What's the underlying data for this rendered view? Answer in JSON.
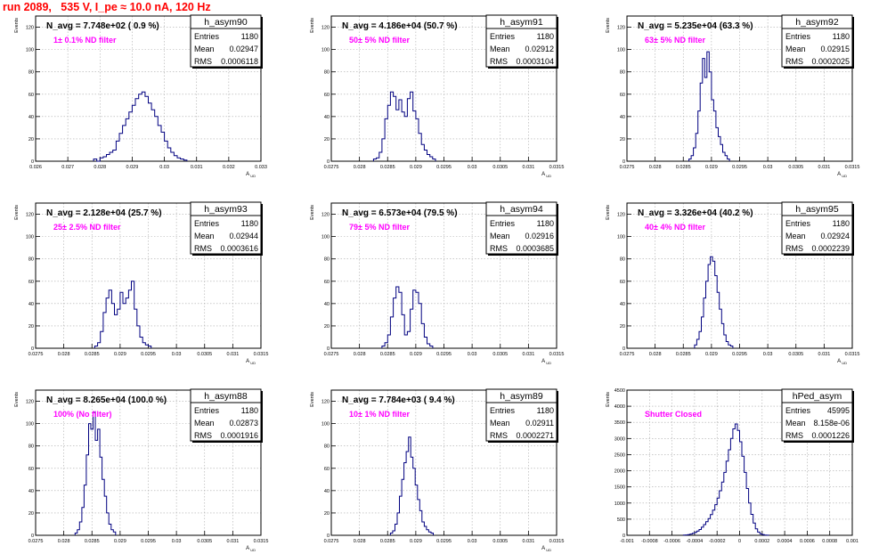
{
  "header": {
    "title": "run 2089,   535 V, I_pe ≈ 10.0 nA, 120 Hz"
  },
  "stats_labels": {
    "entries": "Entries",
    "mean": "Mean",
    "rms": "RMS"
  },
  "colors": {
    "histogram": "#000080",
    "annotation": "#ff00ff",
    "header": "#ff0000",
    "grid": "#aaaaaa"
  },
  "chart_data": [
    {
      "type": "histogram",
      "name": "h_asym90",
      "ylabel": "Events",
      "xlabel": "A_UD",
      "title": "N_avg = 7.748e+02 ( 0.9 %)",
      "annotation": "1± 0.1% ND filter",
      "stats": {
        "entries": "1180",
        "mean": "0.02947",
        "rms": "0.0006118"
      },
      "xlim": [
        0.026,
        0.033
      ],
      "ylim": [
        0,
        130
      ],
      "xticks": [
        "0.026",
        "0.027",
        "0.028",
        "0.029",
        "0.03",
        "0.031",
        "0.032",
        "0.033"
      ],
      "xtick_values": [
        0.026,
        0.027,
        0.028,
        0.029,
        0.03,
        0.031,
        0.032,
        0.033
      ],
      "yticks": [
        0,
        20,
        40,
        60,
        80,
        100,
        120
      ],
      "bins": {
        "start": 0.0278,
        "width": 0.0001,
        "counts": [
          2,
          0,
          3,
          4,
          6,
          8,
          10,
          18,
          25,
          32,
          38,
          44,
          50,
          56,
          60,
          62,
          58,
          52,
          46,
          40,
          32,
          26,
          18,
          12,
          8,
          5,
          3,
          2,
          1
        ]
      }
    },
    {
      "type": "histogram",
      "name": "h_asym91",
      "ylabel": "Events",
      "xlabel": "A_UD",
      "title": "N_avg = 4.186e+04 (50.7 %)",
      "annotation": "50± 5% ND filter",
      "stats": {
        "entries": "1180",
        "mean": "0.02912",
        "rms": "0.0003104"
      },
      "xlim": [
        0.0275,
        0.0315
      ],
      "ylim": [
        0,
        130
      ],
      "xticks": [
        "0.0275",
        "0.028",
        "0.0285",
        "0.029",
        "0.0295",
        "0.03",
        "0.0305",
        "0.031",
        "0.0315"
      ],
      "xtick_values": [
        0.0275,
        0.028,
        0.0285,
        0.029,
        0.0295,
        0.03,
        0.0305,
        0.031,
        0.0315
      ],
      "yticks": [
        0,
        20,
        40,
        60,
        80,
        100,
        120
      ],
      "bins": {
        "start": 0.02825,
        "width": 5e-05,
        "counts": [
          2,
          3,
          8,
          20,
          38,
          50,
          62,
          58,
          46,
          55,
          44,
          40,
          56,
          62,
          45,
          38,
          25,
          15,
          10,
          6,
          4,
          2
        ]
      }
    },
    {
      "type": "histogram",
      "name": "h_asym92",
      "ylabel": "Events",
      "xlabel": "A_UD",
      "title": "N_avg = 5.235e+04 (63.3 %)",
      "annotation": "63± 5% ND filter",
      "stats": {
        "entries": "1180",
        "mean": "0.02915",
        "rms": "0.0002025"
      },
      "xlim": [
        0.0275,
        0.0315
      ],
      "ylim": [
        0,
        130
      ],
      "xticks": [
        "0.0275",
        "0.028",
        "0.0285",
        "0.029",
        "0.0295",
        "0.03",
        "0.0305",
        "0.031",
        "0.0315"
      ],
      "xtick_values": [
        0.0275,
        0.028,
        0.0285,
        0.029,
        0.0295,
        0.03,
        0.0305,
        0.031,
        0.0315
      ],
      "yticks": [
        0,
        20,
        40,
        60,
        80,
        100,
        120
      ],
      "bins": {
        "start": 0.0286,
        "width": 4e-05,
        "counts": [
          2,
          5,
          12,
          25,
          45,
          70,
          92,
          75,
          98,
          80,
          55,
          45,
          30,
          22,
          15,
          8,
          5,
          2
        ]
      }
    },
    {
      "type": "histogram",
      "name": "h_asym93",
      "ylabel": "Events",
      "xlabel": "A_UD",
      "title": "N_avg = 2.128e+04 (25.7 %)",
      "annotation": "25± 2.5% ND filter",
      "stats": {
        "entries": "1180",
        "mean": "0.02944",
        "rms": "0.0003616"
      },
      "xlim": [
        0.0275,
        0.0315
      ],
      "ylim": [
        0,
        130
      ],
      "xticks": [
        "0.0275",
        "0.028",
        "0.0285",
        "0.029",
        "0.0295",
        "0.03",
        "0.0305",
        "0.031",
        "0.0315"
      ],
      "xtick_values": [
        0.0275,
        0.028,
        0.0285,
        0.029,
        0.0295,
        0.03,
        0.0305,
        0.031,
        0.0315
      ],
      "yticks": [
        0,
        20,
        40,
        60,
        80,
        100,
        120
      ],
      "bins": {
        "start": 0.02855,
        "width": 5e-05,
        "counts": [
          2,
          5,
          15,
          32,
          45,
          52,
          40,
          30,
          35,
          50,
          40,
          45,
          52,
          60,
          35,
          20,
          10,
          5,
          3,
          2
        ]
      }
    },
    {
      "type": "histogram",
      "name": "h_asym94",
      "ylabel": "Events",
      "xlabel": "A_UD",
      "title": "N_avg = 6.573e+04 (79.5 %)",
      "annotation": "79± 5% ND filter",
      "stats": {
        "entries": "1180",
        "mean": "0.02916",
        "rms": "0.0003685"
      },
      "xlim": [
        0.0275,
        0.0315
      ],
      "ylim": [
        0,
        130
      ],
      "xticks": [
        "0.0275",
        "0.028",
        "0.0285",
        "0.029",
        "0.0295",
        "0.03",
        "0.0305",
        "0.031",
        "0.0315"
      ],
      "xtick_values": [
        0.0275,
        0.028,
        0.0285,
        0.029,
        0.0295,
        0.03,
        0.0305,
        0.031,
        0.0315
      ],
      "yticks": [
        0,
        20,
        40,
        60,
        80,
        100,
        120
      ],
      "bins": {
        "start": 0.0284,
        "width": 5e-05,
        "counts": [
          2,
          5,
          12,
          28,
          45,
          55,
          50,
          30,
          12,
          15,
          35,
          52,
          50,
          40,
          22,
          10,
          4,
          2
        ]
      }
    },
    {
      "type": "histogram",
      "name": "h_asym95",
      "ylabel": "Events",
      "xlabel": "A_UD",
      "title": "N_avg = 3.326e+04 (40.2 %)",
      "annotation": "40± 4% ND filter",
      "stats": {
        "entries": "1180",
        "mean": "0.02924",
        "rms": "0.0002239"
      },
      "xlim": [
        0.0275,
        0.0315
      ],
      "ylim": [
        0,
        130
      ],
      "xticks": [
        "0.0275",
        "0.028",
        "0.0285",
        "0.029",
        "0.0295",
        "0.03",
        "0.0305",
        "0.031",
        "0.0315"
      ],
      "xtick_values": [
        0.0275,
        0.028,
        0.0285,
        0.029,
        0.0295,
        0.03,
        0.0305,
        0.031,
        0.0315
      ],
      "yticks": [
        0,
        20,
        40,
        60,
        80,
        100,
        120
      ],
      "bins": {
        "start": 0.0287,
        "width": 4e-05,
        "counts": [
          3,
          8,
          15,
          28,
          45,
          60,
          75,
          82,
          78,
          65,
          50,
          35,
          22,
          12,
          6,
          3,
          2
        ]
      }
    },
    {
      "type": "histogram",
      "name": "h_asym88",
      "ylabel": "Events",
      "xlabel": "A_UD",
      "title": "N_avg = 8.265e+04 (100.0 %)",
      "annotation": "100% (No filter)",
      "stats": {
        "entries": "1180",
        "mean": "0.02873",
        "rms": "0.0001916"
      },
      "xlim": [
        0.0275,
        0.0315
      ],
      "ylim": [
        0,
        130
      ],
      "xticks": [
        "0.0275",
        "0.028",
        "0.0285",
        "0.029",
        "0.0295",
        "0.03",
        "0.0305",
        "0.031",
        "0.0315"
      ],
      "xtick_values": [
        0.0275,
        0.028,
        0.0285,
        0.029,
        0.0295,
        0.03,
        0.0305,
        0.031,
        0.0315
      ],
      "yticks": [
        0,
        20,
        40,
        60,
        80,
        100,
        120
      ],
      "bins": {
        "start": 0.0282,
        "width": 4e-05,
        "counts": [
          2,
          5,
          12,
          25,
          45,
          72,
          100,
          95,
          110,
          85,
          95,
          70,
          50,
          35,
          20,
          10,
          5,
          3
        ]
      }
    },
    {
      "type": "histogram",
      "name": "h_asym89",
      "ylabel": "Events",
      "xlabel": "A_UD",
      "title": "N_avg = 7.784e+03 ( 9.4 %)",
      "annotation": "10± 1% ND filter",
      "stats": {
        "entries": "1180",
        "mean": "0.02911",
        "rms": "0.0002271"
      },
      "xlim": [
        0.0275,
        0.0315
      ],
      "ylim": [
        0,
        130
      ],
      "xticks": [
        "0.0275",
        "0.028",
        "0.0285",
        "0.029",
        "0.0295",
        "0.03",
        "0.0305",
        "0.031",
        "0.0315"
      ],
      "xtick_values": [
        0.0275,
        0.028,
        0.0285,
        0.029,
        0.0295,
        0.03,
        0.0305,
        0.031,
        0.0315
      ],
      "yticks": [
        0,
        20,
        40,
        60,
        80,
        100,
        120
      ],
      "bins": {
        "start": 0.02855,
        "width": 4e-05,
        "counts": [
          2,
          4,
          10,
          20,
          35,
          50,
          65,
          75,
          88,
          70,
          60,
          45,
          32,
          22,
          12,
          8,
          5,
          3,
          2
        ]
      }
    },
    {
      "type": "histogram",
      "name": "hPed_asym",
      "ylabel": "Events",
      "xlabel": "",
      "title": "",
      "annotation": "Shutter Closed",
      "stats": {
        "entries": "45995",
        "mean": "8.158e-06",
        "rms": "0.0001226"
      },
      "xlim": [
        -0.001,
        0.001
      ],
      "ylim": [
        0,
        4500
      ],
      "xticks": [
        "-0.001",
        "-0.0008",
        "-0.0006",
        "-0.0004",
        "-0.0002",
        "0",
        "0.0002",
        "0.0004",
        "0.0006",
        "0.0008",
        "0.001"
      ],
      "xtick_values": [
        -0.001,
        -0.0008,
        -0.0006,
        -0.0004,
        -0.0002,
        0,
        0.0002,
        0.0004,
        0.0006,
        0.0008,
        0.001
      ],
      "yticks": [
        0,
        500,
        1000,
        1500,
        2000,
        2500,
        3000,
        3500,
        4000,
        4500
      ],
      "bins": {
        "start": -0.0005,
        "width": 2e-05,
        "counts": [
          5,
          10,
          20,
          40,
          60,
          90,
          130,
          180,
          250,
          330,
          420,
          520,
          640,
          780,
          950,
          1150,
          1380,
          1650,
          1950,
          2300,
          2650,
          3000,
          3300,
          3450,
          3250,
          2900,
          2450,
          1950,
          1450,
          1000,
          650,
          380,
          200,
          100,
          45,
          20,
          8,
          3
        ]
      }
    }
  ]
}
